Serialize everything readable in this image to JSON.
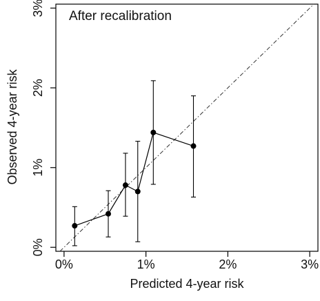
{
  "chart_data": {
    "type": "scatter",
    "title": "After recalibration",
    "xlabel": "Predicted 4-year risk",
    "ylabel": "Observed 4-year risk",
    "xlim": [
      -0.1,
      3.1
    ],
    "ylim": [
      -0.05,
      3.05
    ],
    "x_ticks": [
      0,
      1,
      2,
      3
    ],
    "y_ticks": [
      0,
      1,
      2,
      3
    ],
    "x_tick_labels": [
      "0%",
      "1%",
      "2%",
      "3%"
    ],
    "y_tick_labels": [
      "0%",
      "1%",
      "2%",
      "3%"
    ],
    "grid": false,
    "reference_line": {
      "style": "dash-dot",
      "from": [
        0,
        0
      ],
      "to": [
        3,
        3
      ]
    },
    "points": [
      {
        "x": 0.13,
        "y": 0.27,
        "lower": 0.02,
        "upper": 0.51
      },
      {
        "x": 0.54,
        "y": 0.42,
        "lower": 0.13,
        "upper": 0.71
      },
      {
        "x": 0.75,
        "y": 0.78,
        "lower": 0.39,
        "upper": 1.18
      },
      {
        "x": 0.9,
        "y": 0.7,
        "lower": 0.07,
        "upper": 1.33
      },
      {
        "x": 1.09,
        "y": 1.44,
        "lower": 0.79,
        "upper": 2.09
      },
      {
        "x": 1.58,
        "y": 1.27,
        "lower": 0.63,
        "upper": 1.9
      }
    ],
    "colors": {
      "ink": "#000000",
      "reference": "#333333"
    }
  }
}
